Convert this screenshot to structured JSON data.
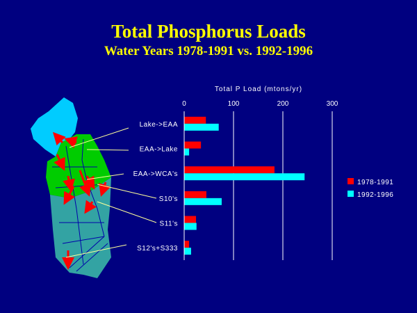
{
  "header": {
    "title": "Total Phosphorus Loads",
    "subtitle": "Water Years  1978-1991  vs.  1992-1996"
  },
  "colors": {
    "background": "#000080",
    "title": "#ffff00",
    "series_1978_1991": "#ff0000",
    "series_1992_1996": "#00ffff",
    "lake": "#00ccff",
    "eaa": "#00cc00",
    "wca": "#33a3a3",
    "arrows": "#ff0000"
  },
  "chart_data": {
    "type": "bar",
    "orientation": "horizontal",
    "title": "Total P Load (mtons/yr)",
    "xlim": [
      0,
      300
    ],
    "xticks": [
      0,
      100,
      200,
      300
    ],
    "grid": true,
    "legend_position": "right",
    "categories": [
      "Lake->EAA",
      "EAA->Lake",
      "EAA->WCA's",
      "S10's",
      "S11's",
      "S12's+S333"
    ],
    "series": [
      {
        "name": "1978-1991",
        "color": "#ff0000",
        "values": [
          44,
          34,
          183,
          45,
          24,
          10
        ]
      },
      {
        "name": "1992-1996",
        "color": "#00ffff",
        "values": [
          70,
          10,
          244,
          76,
          25,
          14
        ]
      }
    ]
  }
}
